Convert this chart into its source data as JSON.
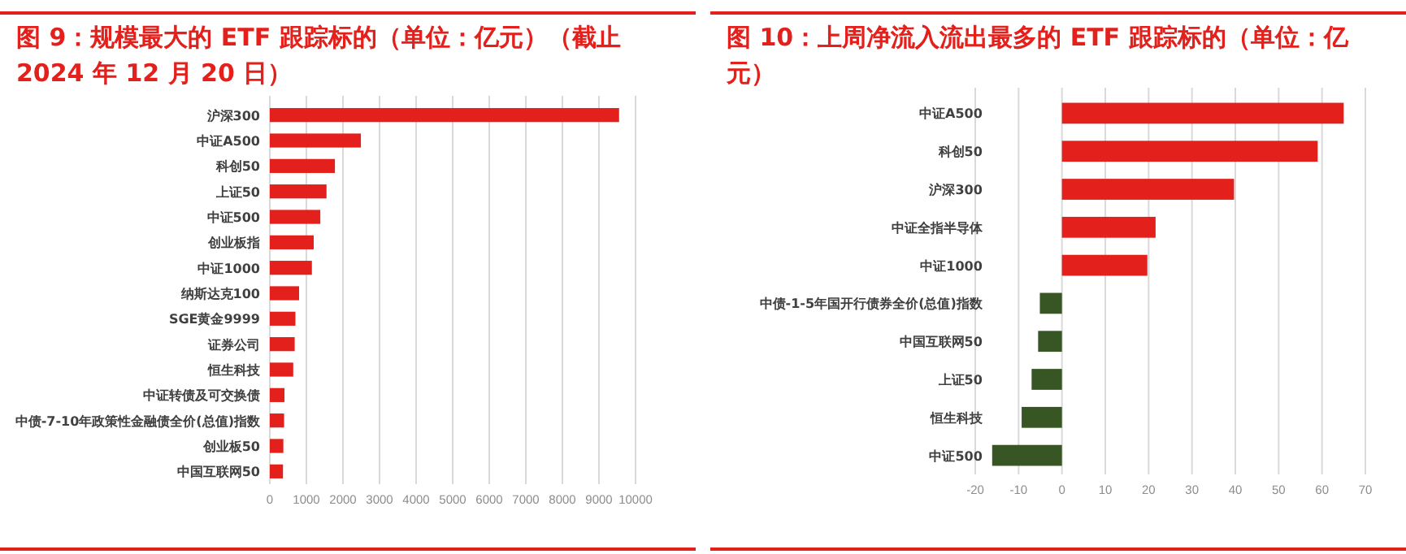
{
  "chart_data": [
    {
      "type": "bar",
      "orientation": "horizontal",
      "title": "图 9：规模最大的 ETF 跟踪标的（单位：亿元）（截止 2024 年 12 月 20 日）",
      "categories": [
        "沪深300",
        "中证A500",
        "科创50",
        "上证50",
        "中证500",
        "创业板指",
        "中证1000",
        "纳斯达克100",
        "SGE黄金9999",
        "证券公司",
        "恒生科技",
        "中证转债及可交换债",
        "中债-7-10年政策性金融债全价(总值)指数",
        "创业板50",
        "中国互联网50"
      ],
      "values": [
        9550,
        2490,
        1780,
        1550,
        1380,
        1200,
        1150,
        800,
        700,
        680,
        640,
        400,
        390,
        370,
        360
      ],
      "color": "#e3201b",
      "xlim": [
        0,
        10000
      ],
      "xticks": [
        0,
        1000,
        2000,
        3000,
        4000,
        5000,
        6000,
        7000,
        8000,
        9000,
        10000
      ],
      "grid": "x"
    },
    {
      "type": "bar",
      "orientation": "horizontal",
      "title": "图 10：上周净流入流出最多的 ETF 跟踪标的（单位：亿元）",
      "categories": [
        "中证A500",
        "科创50",
        "沪深300",
        "中证全指半导体",
        "中证1000",
        "中债-1-5年国开行债券全价(总值)指数",
        "中国互联网50",
        "上证50",
        "恒生科技",
        "中证500"
      ],
      "values": [
        65,
        59,
        39.7,
        21.6,
        19.7,
        -5.1,
        -5.5,
        -7,
        -9.3,
        -16.1
      ],
      "colors": [
        "#e3201b",
        "#e3201b",
        "#e3201b",
        "#e3201b",
        "#e3201b",
        "#375623",
        "#375623",
        "#375623",
        "#375623",
        "#375623"
      ],
      "xlim": [
        -20,
        70
      ],
      "xticks": [
        -20,
        -10,
        0,
        10,
        20,
        30,
        40,
        50,
        60,
        70
      ],
      "grid": "x"
    }
  ]
}
